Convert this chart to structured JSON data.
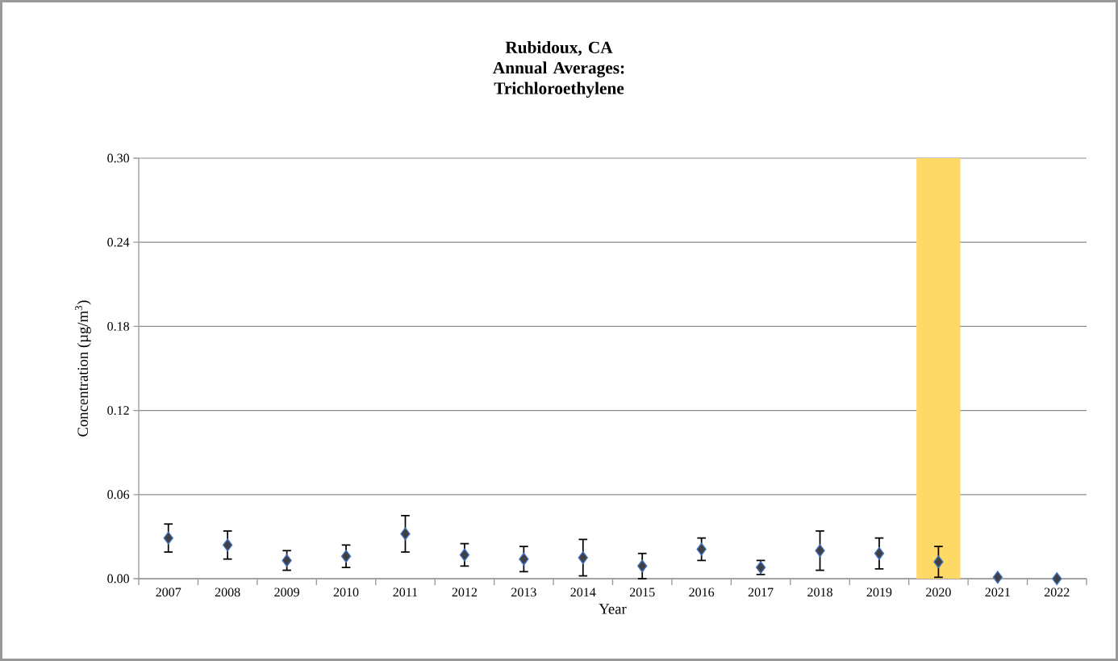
{
  "chart_data": {
    "type": "scatter",
    "title": "Rubidoux, CA Annual Averages: Trichloroethylene",
    "xlabel": "Year",
    "ylabel": "Concentration (µg/m$^{3}$)",
    "categories": [
      "2007",
      "2008",
      "2009",
      "2010",
      "2011",
      "2012",
      "2013",
      "2014",
      "2015",
      "2016",
      "2017",
      "2018",
      "2019",
      "2020",
      "2021",
      "2022"
    ],
    "values": [
      0.029,
      0.024,
      0.013,
      0.016,
      0.032,
      0.017,
      0.014,
      0.015,
      0.009,
      0.021,
      0.008,
      0.02,
      0.018,
      0.012,
      0.001,
      0.0
    ],
    "errors": [
      0.01,
      0.01,
      0.007,
      0.008,
      0.013,
      0.008,
      0.009,
      0.013,
      0.009,
      0.008,
      0.005,
      0.014,
      0.011,
      0.011,
      null,
      null
    ],
    "color": "#404040",
    "marker": "diamond",
    "ylim": [
      0,
      0.3
    ],
    "yticks": [
      {
        "value": 0,
        "label": "0.00"
      },
      {
        "value": 0.06,
        "label": "0.06"
      },
      {
        "value": 0.12,
        "label": "0.12"
      },
      {
        "value": 0.18,
        "label": "0.18"
      },
      {
        "value": 0.24,
        "label": "0.24"
      },
      {
        "value": 0.3,
        "label": "0.30"
      }
    ],
    "grid": "y",
    "bands": [
      {
        "axis": "x",
        "from": "2020",
        "to": "2020",
        "color": "#ffd966"
      }
    ]
  }
}
